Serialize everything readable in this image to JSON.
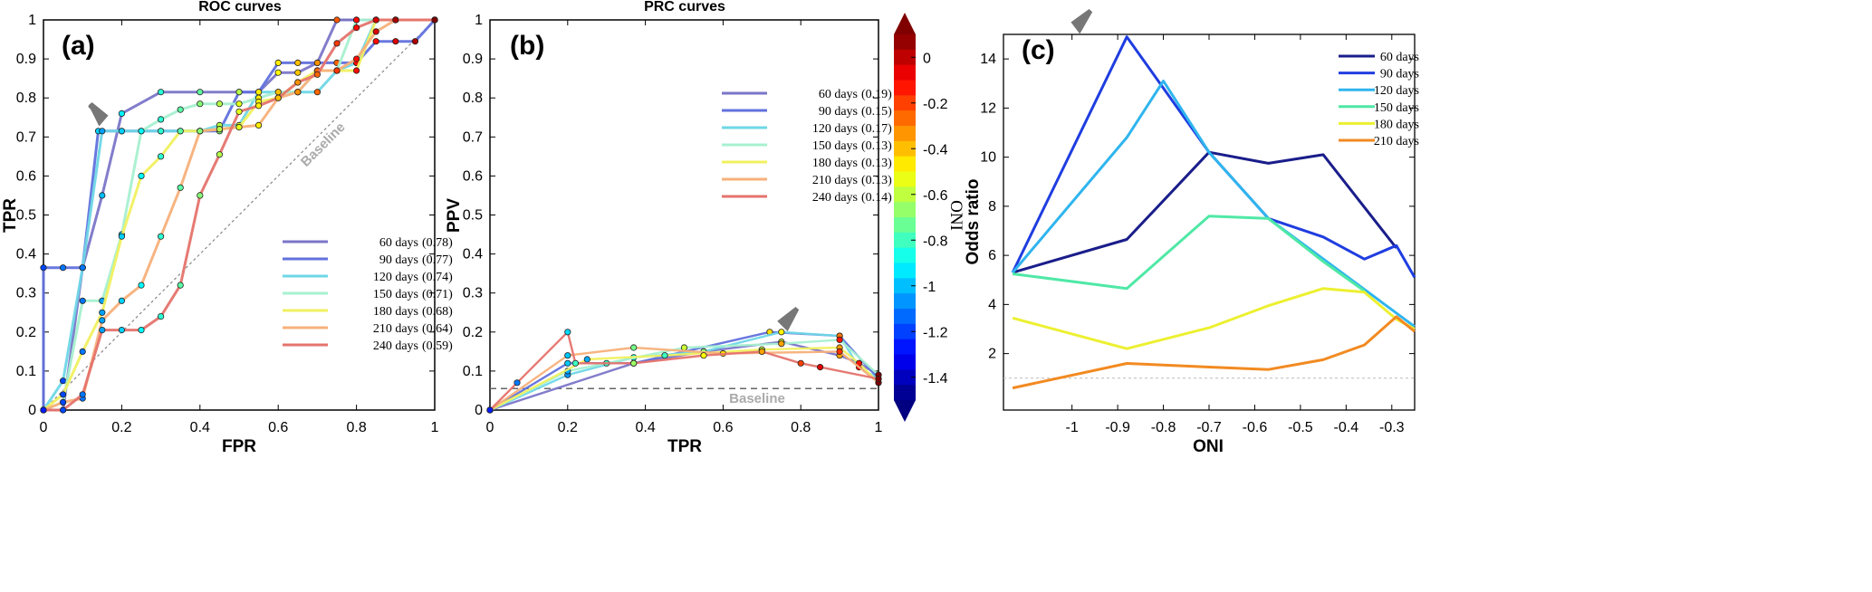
{
  "chart_data": [
    {
      "type": "line",
      "panel_label": "(a)",
      "title": "ROC curves",
      "xlabel": "FPR",
      "ylabel": "TPR",
      "xlim": [
        0,
        1
      ],
      "ylim": [
        0,
        1
      ],
      "x_ticks": [
        "0",
        "0.2",
        "0.4",
        "0.6",
        "0.8",
        "1"
      ],
      "y_ticks": [
        "0",
        "0.1",
        "0.2",
        "0.3",
        "0.4",
        "0.5",
        "0.6",
        "0.7",
        "0.8",
        "0.9",
        "1"
      ],
      "baseline_label": "Baseline",
      "legend_position": "bottom-right",
      "series": [
        {
          "name": "60 days",
          "value_label": "(0.78)",
          "color": "#7b76c8",
          "x": [
            0,
            0.05,
            0.1,
            0.15,
            0.2,
            0.3,
            0.4,
            0.5,
            0.55,
            0.6,
            0.65,
            0.7,
            0.75,
            0.8,
            0.85,
            0.9,
            1.0
          ],
          "y": [
            0,
            0,
            0.365,
            0.55,
            0.76,
            0.815,
            0.815,
            0.815,
            0.815,
            0.865,
            0.865,
            0.89,
            1,
            1,
            1,
            1,
            1
          ]
        },
        {
          "name": "90 days",
          "value_label": "(0.77)",
          "color": "#6171dc",
          "x": [
            0,
            0.0,
            0.05,
            0.1,
            0.14,
            0.2,
            0.3,
            0.4,
            0.45,
            0.5,
            0.55,
            0.6,
            0.65,
            0.7,
            0.75,
            0.8,
            0.85,
            0.9,
            0.95,
            1.0
          ],
          "y": [
            0,
            0.365,
            0.365,
            0.365,
            0.715,
            0.715,
            0.715,
            0.715,
            0.715,
            0.815,
            0.815,
            0.89,
            0.89,
            0.89,
            0.89,
            0.89,
            0.945,
            0.945,
            0.945,
            1
          ]
        },
        {
          "name": "120 days",
          "value_label": "(0.74)",
          "color": "#6fd7e6",
          "x": [
            0,
            0.05,
            0.1,
            0.15,
            0.2,
            0.25,
            0.3,
            0.35,
            0.4,
            0.45,
            0.5,
            0.55,
            0.6,
            0.65,
            0.7,
            0.75,
            0.8,
            0.85,
            0.9,
            1.0
          ],
          "y": [
            0,
            0.075,
            0.365,
            0.715,
            0.715,
            0.715,
            0.715,
            0.715,
            0.715,
            0.73,
            0.73,
            0.815,
            0.815,
            0.815,
            0.815,
            0.87,
            0.89,
            1,
            1,
            1
          ]
        },
        {
          "name": "150 days",
          "value_label": "(0.71)",
          "color": "#a7f0d0",
          "x": [
            0,
            0.05,
            0.1,
            0.15,
            0.2,
            0.25,
            0.3,
            0.35,
            0.4,
            0.45,
            0.5,
            0.55,
            0.6,
            0.65,
            0.7,
            0.75,
            0.8,
            0.85,
            0.9,
            1.0
          ],
          "y": [
            0,
            0.02,
            0.28,
            0.28,
            0.45,
            0.715,
            0.745,
            0.77,
            0.785,
            0.785,
            0.785,
            0.8,
            0.815,
            0.815,
            0.87,
            0.87,
            1,
            1,
            1,
            1
          ]
        },
        {
          "name": "180 days",
          "value_label": "(0.68)",
          "color": "#f0f060",
          "x": [
            0,
            0.05,
            0.1,
            0.15,
            0.2,
            0.25,
            0.3,
            0.35,
            0.4,
            0.45,
            0.5,
            0.55,
            0.6,
            0.65,
            0.7,
            0.75,
            0.8,
            0.85,
            0.9,
            1.0
          ],
          "y": [
            0,
            0.04,
            0.15,
            0.25,
            0.445,
            0.6,
            0.65,
            0.715,
            0.715,
            0.72,
            0.725,
            0.79,
            0.8,
            0.84,
            0.87,
            0.87,
            0.87,
            1,
            1,
            1
          ]
        },
        {
          "name": "210 days",
          "value_label": "(0.64)",
          "color": "#f7b07a",
          "x": [
            0,
            0.05,
            0.1,
            0.15,
            0.2,
            0.25,
            0.3,
            0.35,
            0.4,
            0.45,
            0.5,
            0.55,
            0.6,
            0.65,
            0.7,
            0.75,
            0.8,
            0.85,
            0.9,
            1.0
          ],
          "y": [
            0,
            0.02,
            0.03,
            0.23,
            0.28,
            0.32,
            0.445,
            0.57,
            0.715,
            0.72,
            0.725,
            0.73,
            0.8,
            0.815,
            0.87,
            0.87,
            0.9,
            0.97,
            1,
            1
          ]
        },
        {
          "name": "240 days",
          "value_label": "(0.59)",
          "color": "#e5736d",
          "x": [
            0,
            0.05,
            0.1,
            0.15,
            0.2,
            0.25,
            0.3,
            0.35,
            0.4,
            0.45,
            0.5,
            0.55,
            0.6,
            0.65,
            0.7,
            0.75,
            0.8,
            0.85,
            0.9,
            1.0
          ],
          "y": [
            0,
            0.0,
            0.04,
            0.205,
            0.205,
            0.205,
            0.24,
            0.32,
            0.55,
            0.655,
            0.765,
            0.78,
            0.8,
            0.84,
            0.86,
            0.94,
            0.98,
            1,
            1,
            1
          ]
        }
      ]
    },
    {
      "type": "line",
      "panel_label": "(b)",
      "title": "PRC curves",
      "xlabel": "TPR",
      "ylabel": "PPV",
      "xlim": [
        0,
        1
      ],
      "ylim": [
        0,
        1
      ],
      "x_ticks": [
        "0",
        "0.2",
        "0.4",
        "0.6",
        "0.8",
        "1"
      ],
      "y_ticks": [
        "0",
        "0.1",
        "0.2",
        "0.3",
        "0.4",
        "0.5",
        "0.6",
        "0.7",
        "0.8",
        "0.9",
        "1"
      ],
      "baseline_label": "Baseline",
      "baseline_value": 0.055,
      "legend_position": "top-right",
      "series": [
        {
          "name": "60 days",
          "value_label": "(0.19)",
          "color": "#7b76c8",
          "x": [
            0,
            0.37,
            0.55,
            0.75,
            0.9,
            0.95,
            1.0
          ],
          "y": [
            0,
            0.12,
            0.15,
            0.175,
            0.14,
            0.12,
            0.09
          ]
        },
        {
          "name": "90 days",
          "value_label": "(0.15)",
          "color": "#6171dc",
          "x": [
            0,
            0.2,
            0.37,
            0.72,
            0.9,
            1.0
          ],
          "y": [
            0,
            0.12,
            0.12,
            0.2,
            0.19,
            0.08
          ]
        },
        {
          "name": "120 days",
          "value_label": "(0.17)",
          "color": "#6fd7e6",
          "x": [
            0,
            0.2,
            0.37,
            0.55,
            0.75,
            0.9,
            0.95,
            1.0
          ],
          "y": [
            0,
            0.09,
            0.135,
            0.15,
            0.2,
            0.19,
            0.11,
            0.08
          ]
        },
        {
          "name": "150 days",
          "value_label": "(0.13)",
          "color": "#a7f0d0",
          "x": [
            0,
            0.2,
            0.3,
            0.5,
            0.75,
            0.9,
            1.0
          ],
          "y": [
            0,
            0.1,
            0.12,
            0.16,
            0.17,
            0.18,
            0.09
          ]
        },
        {
          "name": "180 days",
          "value_label": "(0.13)",
          "color": "#f0f060",
          "x": [
            0,
            0.25,
            0.45,
            0.7,
            0.9,
            0.95,
            1.0
          ],
          "y": [
            0,
            0.13,
            0.14,
            0.155,
            0.16,
            0.12,
            0.07
          ]
        },
        {
          "name": "210 days",
          "value_label": "(0.13)",
          "color": "#f7b07a",
          "x": [
            0,
            0.2,
            0.37,
            0.6,
            0.9,
            1.0
          ],
          "y": [
            0,
            0.14,
            0.16,
            0.145,
            0.15,
            0.07
          ]
        },
        {
          "name": "240 days",
          "value_label": "(0.14)",
          "color": "#e5736d",
          "x": [
            0,
            0.07,
            0.2,
            0.22,
            0.37,
            0.55,
            0.7,
            0.8,
            0.85,
            1.0
          ],
          "y": [
            0,
            0.07,
            0.2,
            0.12,
            0.12,
            0.14,
            0.15,
            0.12,
            0.11,
            0.08
          ]
        }
      ]
    },
    {
      "type": "colorbar",
      "label": "ONI",
      "range": [
        -1.5,
        0.1
      ],
      "tick_labels": [
        "0",
        "-0.2",
        "-0.4",
        "-0.6",
        "-0.8",
        "-1",
        "-1.2",
        "-1.4"
      ],
      "tick_values": [
        0,
        -0.2,
        -0.4,
        -0.6,
        -0.8,
        -1.0,
        -1.2,
        -1.4
      ]
    },
    {
      "type": "line",
      "panel_label": "(c)",
      "title": "",
      "xlabel": "ONI",
      "ylabel": "Odds ratio",
      "xlim": [
        -1.15,
        -0.25
      ],
      "ylim": [
        -0.3,
        15
      ],
      "x_ticks": [
        "-1",
        "-0.9",
        "-0.8",
        "-0.7",
        "-0.6",
        "-0.5",
        "-0.4",
        "-0.3"
      ],
      "x_tick_values": [
        -1.0,
        -0.9,
        -0.8,
        -0.7,
        -0.6,
        -0.5,
        -0.4,
        -0.3
      ],
      "y_ticks": [
        "2",
        "4",
        "6",
        "8",
        "10",
        "12",
        "14"
      ],
      "y_tick_values": [
        2,
        4,
        6,
        8,
        10,
        12,
        14
      ],
      "reference_line": 1,
      "legend_position": "top-right",
      "series": [
        {
          "name": "60 days",
          "color": "#1a1d8a",
          "x": [
            -1.13,
            -0.88,
            -0.7,
            -0.57,
            -0.45,
            -0.29
          ],
          "y": [
            5.3,
            6.65,
            10.2,
            9.75,
            10.1,
            6.3
          ]
        },
        {
          "name": "90 days",
          "color": "#1f3de0",
          "x": [
            -1.13,
            -0.88,
            -0.7,
            -0.57,
            -0.45,
            -0.36,
            -0.29,
            -0.25
          ],
          "y": [
            5.3,
            14.9,
            10.2,
            7.5,
            6.75,
            5.85,
            6.4,
            5.1
          ]
        },
        {
          "name": "120 days",
          "color": "#2fb5ee",
          "x": [
            -1.13,
            -0.88,
            -0.8,
            -0.7,
            -0.57,
            -0.25
          ],
          "y": [
            5.3,
            10.8,
            13.1,
            10.2,
            7.5,
            3.1
          ]
        },
        {
          "name": "150 days",
          "color": "#4fe8a6",
          "x": [
            -1.13,
            -0.88,
            -0.7,
            -0.57,
            -0.45,
            -0.36
          ],
          "y": [
            5.25,
            4.65,
            7.6,
            7.5,
            5.75,
            4.55
          ]
        },
        {
          "name": "180 days",
          "color": "#ecf030",
          "x": [
            -1.13,
            -0.88,
            -0.7,
            -0.57,
            -0.45,
            -0.36,
            -0.29,
            -0.25
          ],
          "y": [
            3.45,
            2.2,
            3.05,
            3.95,
            4.65,
            4.5,
            3.4,
            3.0
          ]
        },
        {
          "name": "210 days",
          "color": "#f28a21",
          "x": [
            -1.13,
            -0.88,
            -0.7,
            -0.57,
            -0.45,
            -0.36,
            -0.29,
            -0.25
          ],
          "y": [
            0.6,
            1.6,
            1.45,
            1.35,
            1.75,
            2.35,
            3.5,
            2.9
          ]
        }
      ]
    }
  ]
}
